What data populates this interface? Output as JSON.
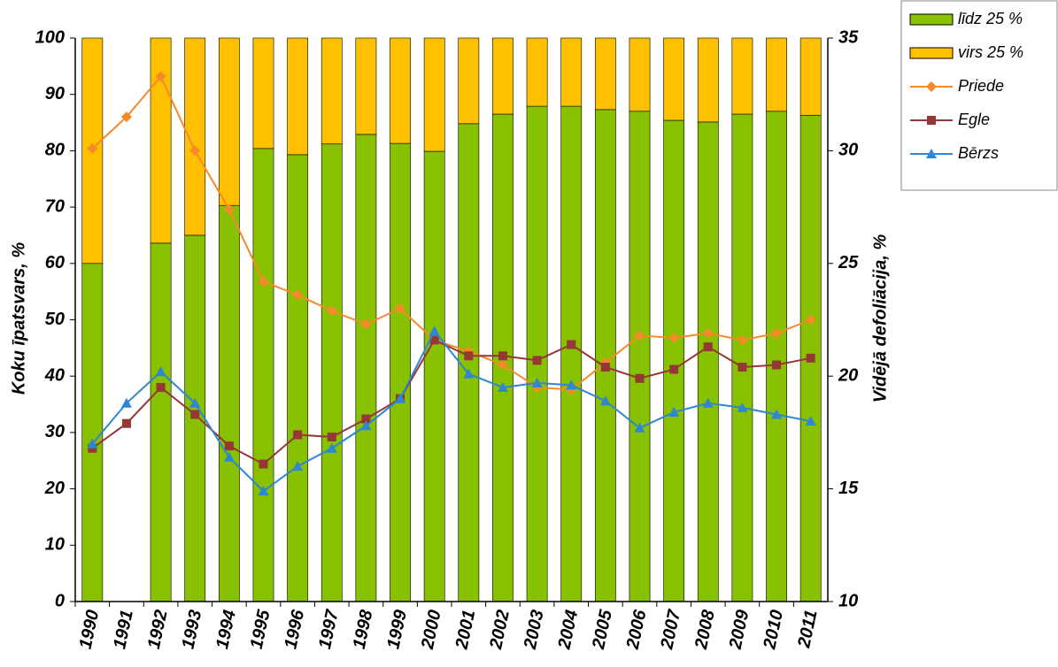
{
  "chart_data": {
    "type": "bar",
    "stacked": true,
    "categories": [
      "1990",
      "1991",
      "1992",
      "1993",
      "1994",
      "1995",
      "1996",
      "1997",
      "1998",
      "1999",
      "2000",
      "2001",
      "2002",
      "2003",
      "2004",
      "2005",
      "2006",
      "2007",
      "2008",
      "2009",
      "2010",
      "2011"
    ],
    "series": [
      {
        "name": "līdz 25 %",
        "type": "bar",
        "color": "#88c100",
        "values": [
          60,
          null,
          63.6,
          65,
          70.3,
          80.4,
          79.3,
          81.2,
          82.9,
          81.3,
          79.9,
          84.8,
          86.5,
          87.9,
          87.9,
          87.3,
          87,
          85.4,
          85.1,
          86.5,
          87,
          86.3
        ]
      },
      {
        "name": "virs 25 %",
        "type": "bar",
        "color": "#ffc000",
        "values": [
          40,
          null,
          36.4,
          35,
          29.7,
          19.6,
          20.7,
          18.8,
          17.1,
          18.7,
          20.1,
          15.2,
          13.5,
          12.1,
          12.1,
          12.7,
          13,
          14.6,
          14.9,
          13.5,
          13,
          13.7
        ]
      },
      {
        "name": "Priede",
        "type": "line",
        "axis": "y2",
        "marker": "diamond",
        "color": "#f58a2a",
        "values": [
          30.1,
          31.5,
          33.3,
          30,
          27.4,
          24.2,
          23.6,
          22.9,
          22.3,
          23,
          21.6,
          21.1,
          20.5,
          19.5,
          19.4,
          20.6,
          21.8,
          21.7,
          21.9,
          21.6,
          21.9,
          22.5
        ]
      },
      {
        "name": "Egle",
        "type": "line",
        "axis": "y2",
        "marker": "square",
        "color": "#953735",
        "values": [
          16.8,
          17.9,
          19.5,
          18.3,
          16.9,
          16.1,
          17.4,
          17.3,
          18.1,
          19,
          21.6,
          20.9,
          20.9,
          20.7,
          21.4,
          20.4,
          19.9,
          20.3,
          21.3,
          20.4,
          20.5,
          20.8
        ]
      },
      {
        "name": "Bērzs",
        "type": "line",
        "axis": "y2",
        "marker": "triangle",
        "color": "#2f86d3",
        "values": [
          17,
          18.8,
          20.2,
          18.8,
          16.4,
          14.9,
          16,
          16.8,
          17.8,
          19,
          22,
          20.1,
          19.5,
          19.7,
          19.6,
          18.9,
          17.7,
          18.4,
          18.8,
          18.6,
          18.3,
          18
        ]
      }
    ],
    "ylabel": "Koku īpatsvars, %",
    "y2label": "Vidējā defoliācija, %",
    "ylim": [
      0,
      100
    ],
    "yticks": [
      0,
      10,
      20,
      30,
      40,
      50,
      60,
      70,
      80,
      90,
      100
    ],
    "y2lim": [
      10,
      35
    ],
    "y2ticks": [
      10,
      15,
      20,
      25,
      30,
      35
    ],
    "grid": false,
    "legend": "upper right"
  }
}
